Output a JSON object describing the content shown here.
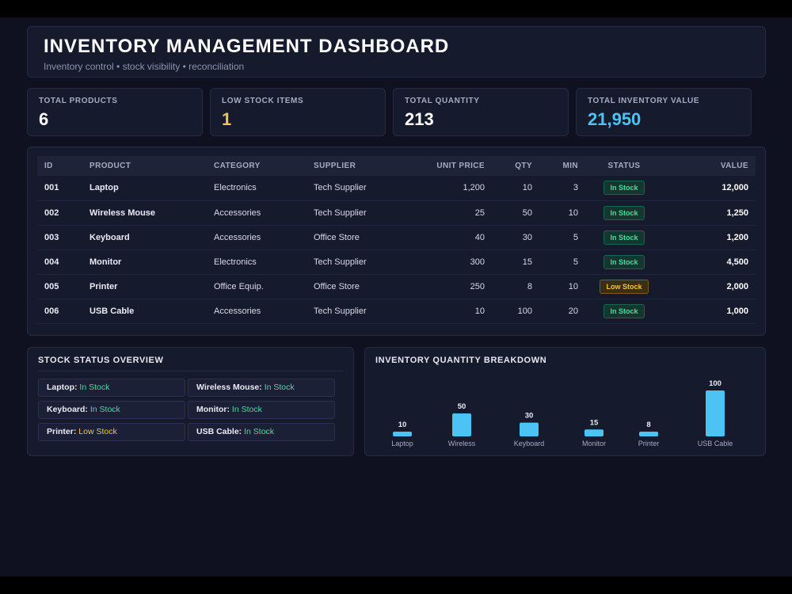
{
  "header": {
    "title": "INVENTORY MANAGEMENT DASHBOARD",
    "subtitle": "Inventory control • stock visibility • reconciliation"
  },
  "stats": [
    {
      "label": "TOTAL PRODUCTS",
      "value": "6"
    },
    {
      "label": "LOW STOCK ITEMS",
      "value": "1"
    },
    {
      "label": "TOTAL QUANTITY",
      "value": "213"
    },
    {
      "label": "TOTAL INVENTORY VALUE",
      "value": "21,950"
    }
  ],
  "table": {
    "columns": [
      "ID",
      "PRODUCT",
      "CATEGORY",
      "SUPPLIER",
      "UNIT PRICE",
      "QTY",
      "MIN",
      "STATUS",
      "VALUE"
    ],
    "rows": [
      {
        "id": "001",
        "product": "Laptop",
        "category": "Electronics",
        "supplier": "Tech Supplier",
        "price": "1,200",
        "qty": "10",
        "min": "3",
        "status": "In Stock",
        "value": "12,000"
      },
      {
        "id": "002",
        "product": "Wireless Mouse",
        "category": "Accessories",
        "supplier": "Tech Supplier",
        "price": "25",
        "qty": "50",
        "min": "10",
        "status": "In Stock",
        "value": "1,250"
      },
      {
        "id": "003",
        "product": "Keyboard",
        "category": "Accessories",
        "supplier": "Office Store",
        "price": "40",
        "qty": "30",
        "min": "5",
        "status": "In Stock",
        "value": "1,200"
      },
      {
        "id": "004",
        "product": "Monitor",
        "category": "Electronics",
        "supplier": "Tech Supplier",
        "price": "300",
        "qty": "15",
        "min": "5",
        "status": "In Stock",
        "value": "4,500"
      },
      {
        "id": "005",
        "product": "Printer",
        "category": "Office Equip.",
        "supplier": "Office Store",
        "price": "250",
        "qty": "8",
        "min": "10",
        "status": "Low Stock",
        "value": "2,000"
      },
      {
        "id": "006",
        "product": "USB Cable",
        "category": "Accessories",
        "supplier": "Tech Supplier",
        "price": "10",
        "qty": "100",
        "min": "20",
        "status": "In Stock",
        "value": "1,000"
      }
    ]
  },
  "status_overview": {
    "title": "STOCK STATUS OVERVIEW",
    "items": [
      {
        "name": "Laptop:",
        "status": "In Stock"
      },
      {
        "name": "Wireless Mouse:",
        "status": "In Stock"
      },
      {
        "name": "Keyboard:",
        "status": "In Stock"
      },
      {
        "name": "Monitor:",
        "status": "In Stock"
      },
      {
        "name": "Printer:",
        "status": "Low Stock"
      },
      {
        "name": "USB Cable:",
        "status": "In Stock"
      }
    ]
  },
  "chart_data": {
    "type": "bar",
    "title": "INVENTORY QUANTITY BREAKDOWN",
    "categories": [
      "Laptop",
      "Wireless",
      "Keyboard",
      "Monitor",
      "Printer",
      "USB Cable"
    ],
    "values": [
      10,
      50,
      30,
      15,
      8,
      100
    ],
    "ylim": [
      0,
      100
    ],
    "grid": false,
    "color": "#4cc3f4"
  },
  "colors": {
    "accent": "#4cc3f4",
    "in_stock": "#4cd9a0",
    "low_stock": "#f2c14e"
  }
}
